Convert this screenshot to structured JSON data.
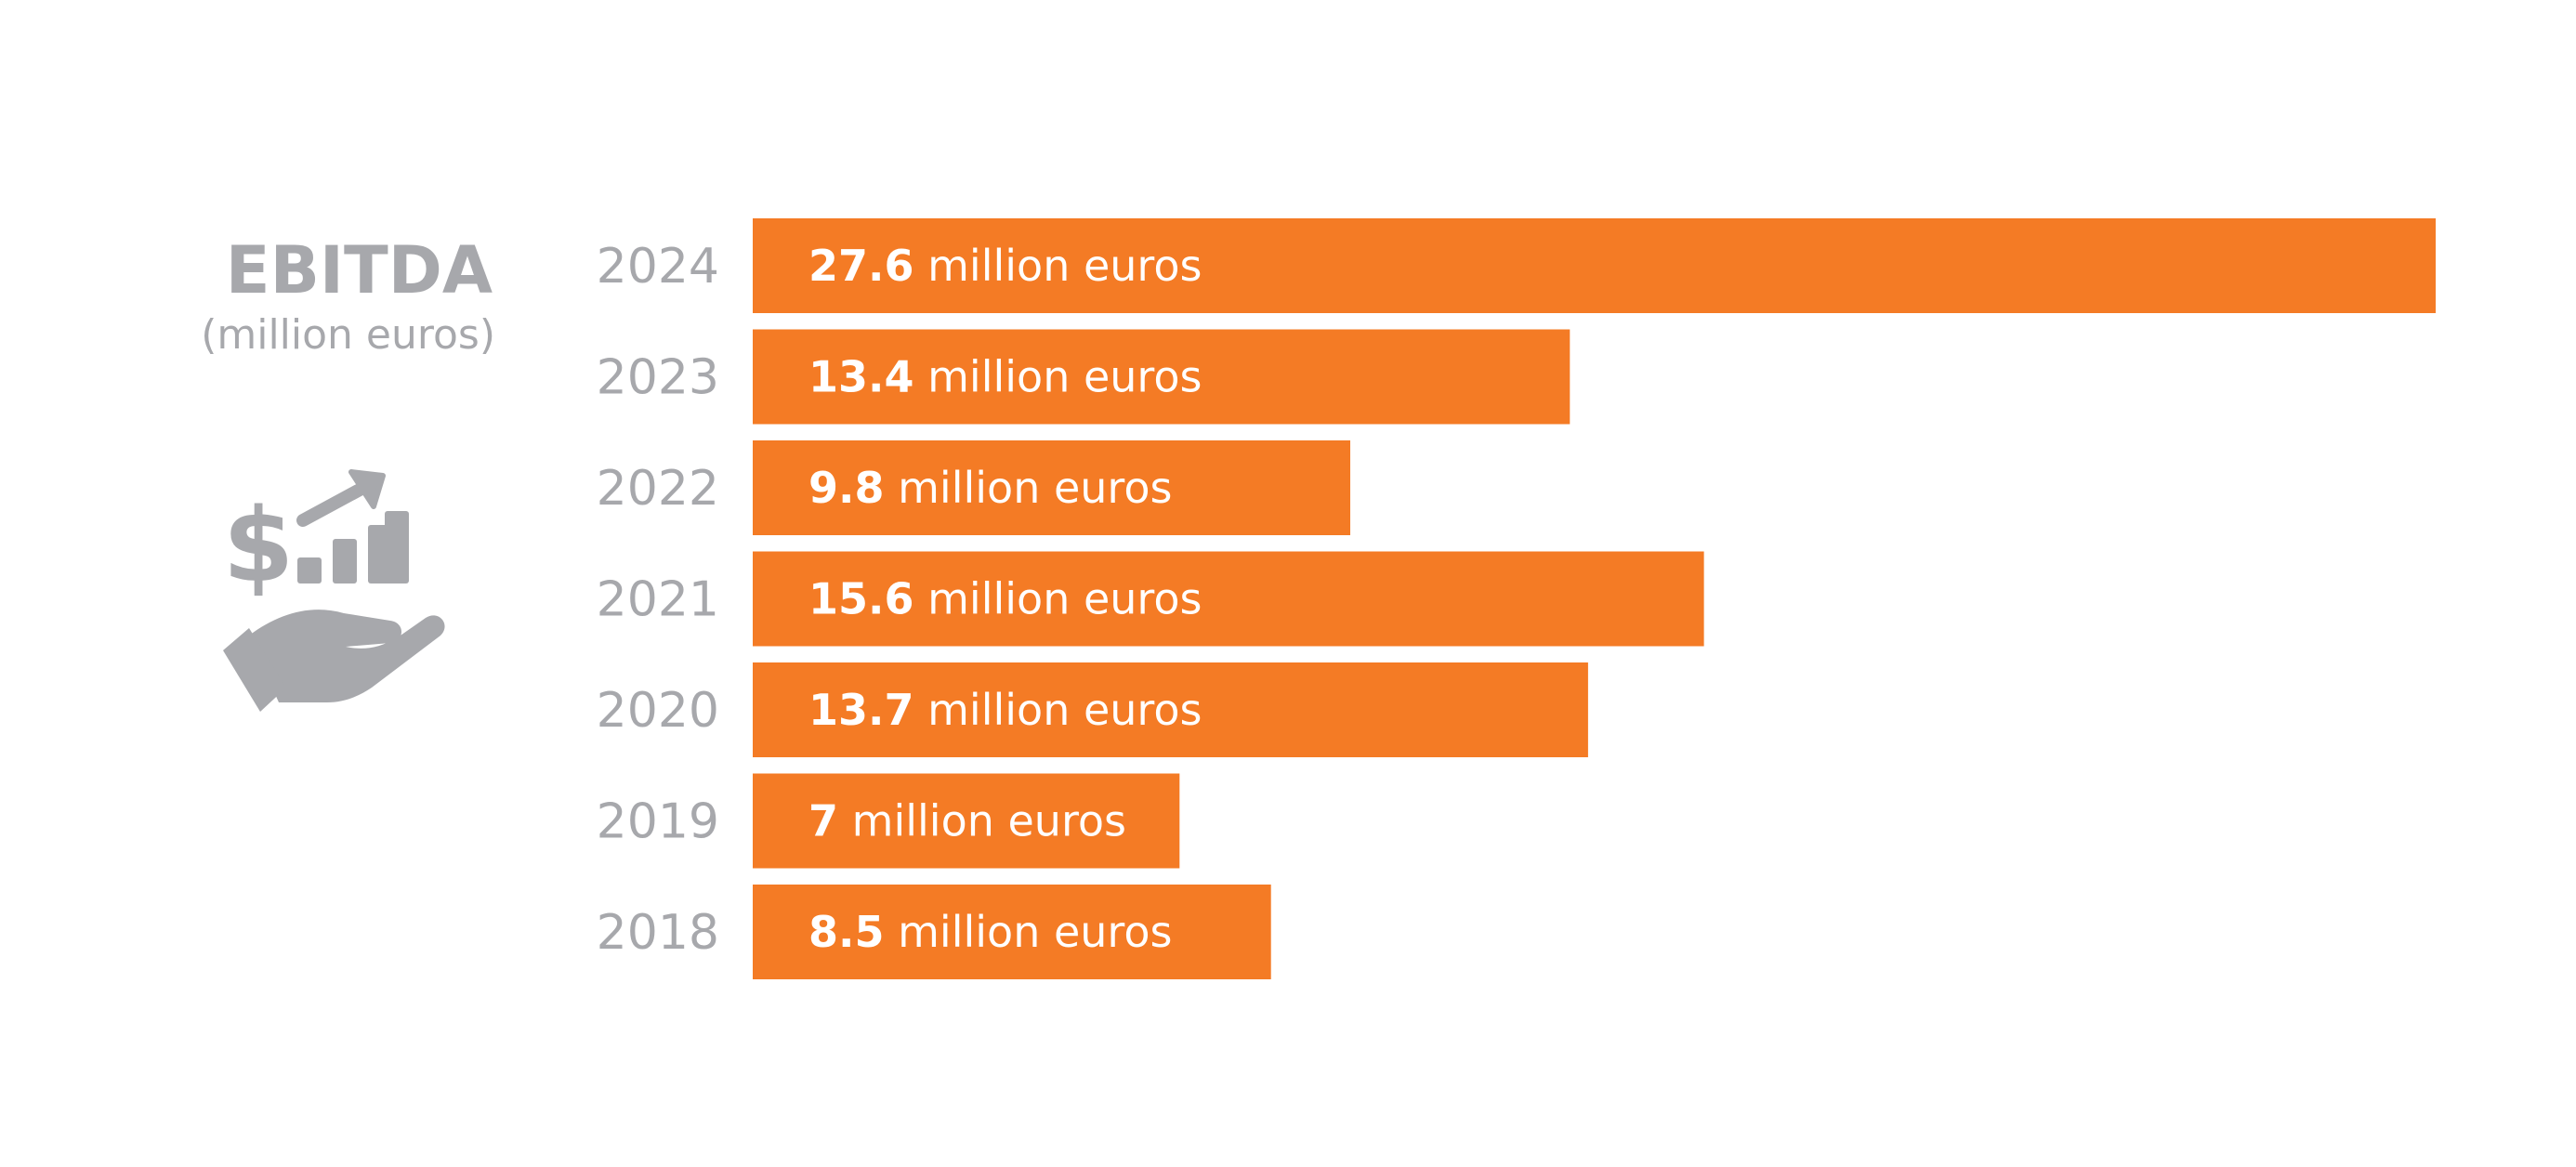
{
  "title": "EBITDA",
  "subtitle": "(million euros)",
  "icon": "money-growth-hand-icon",
  "colors": {
    "bar": "#f47b25",
    "label_gray": "#a7a8ac",
    "bar_text": "#ffffff"
  },
  "chart_data": {
    "type": "bar",
    "orientation": "horizontal",
    "unit_suffix": " million euros",
    "categories": [
      "2024",
      "2023",
      "2022",
      "2021",
      "2020",
      "2019",
      "2018"
    ],
    "values": [
      27.6,
      13.4,
      9.8,
      15.6,
      13.7,
      7,
      8.5
    ],
    "value_labels": [
      "27.6",
      "13.4",
      "9.8",
      "15.6",
      "13.7",
      "7",
      "8.5"
    ],
    "xlim": [
      0,
      27.6
    ],
    "grid": false,
    "legend": "none"
  }
}
